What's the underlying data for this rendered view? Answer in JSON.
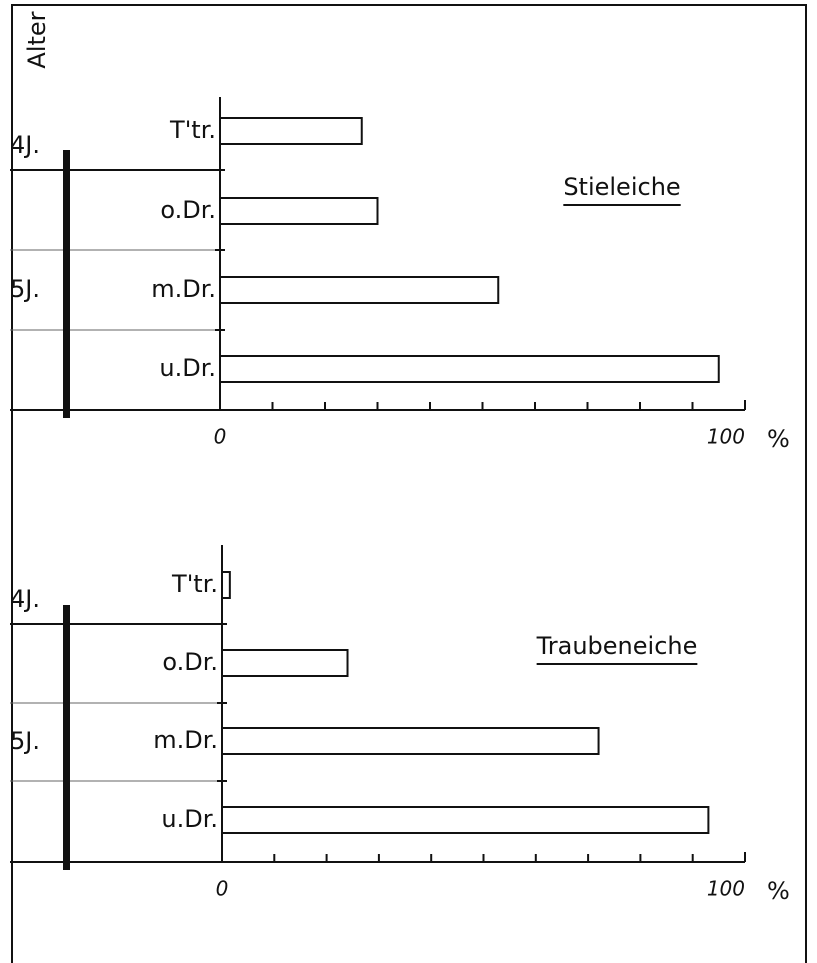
{
  "chart_data": [
    {
      "type": "hbar",
      "title": "Stieleiche",
      "y_label": "Alter",
      "age_labels": [
        "4J.",
        "5J."
      ],
      "categories": [
        "T'tr.",
        "o.Dr.",
        "m.Dr.",
        "u.Dr."
      ],
      "values": [
        27,
        30,
        53,
        95
      ],
      "xlim": [
        0,
        100
      ],
      "xticks": [
        0,
        100
      ],
      "minor_xticks": [
        10,
        20,
        30,
        40,
        50,
        60,
        70,
        80,
        90
      ],
      "xlabel": "%",
      "color": "#ffffff"
    },
    {
      "type": "hbar",
      "title": "Traubeneiche",
      "age_labels": [
        "4J.",
        "5J."
      ],
      "categories": [
        "T'tr.",
        "o.Dr.",
        "m.Dr.",
        "u.Dr."
      ],
      "values": [
        1.5,
        24,
        72,
        93
      ],
      "xlim": [
        0,
        100
      ],
      "xticks": [
        0,
        100
      ],
      "minor_xticks": [
        10,
        20,
        30,
        40,
        50,
        60,
        70,
        80,
        90
      ],
      "xlabel": "%",
      "color": "#ffffff"
    }
  ]
}
